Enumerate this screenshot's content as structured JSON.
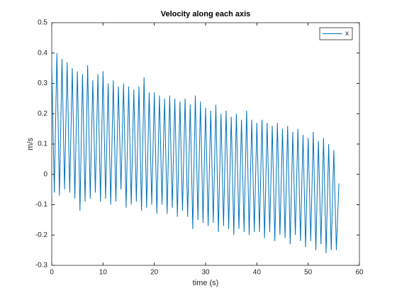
{
  "chart_data": {
    "type": "line",
    "title": "Velocity along each axis",
    "x_label": "time (s)",
    "y_label": "m/s",
    "legend": "northeast",
    "grid": false,
    "xlim": [
      0,
      60
    ],
    "xticks": [
      0,
      10,
      20,
      30,
      40,
      50,
      60
    ],
    "ylim": [
      -0.3,
      0.5
    ],
    "yticks": [
      -0.3,
      -0.2,
      -0.1,
      0,
      0.1,
      0.2,
      0.3,
      0.4,
      0.5
    ],
    "x": [
      0,
      0.5,
      1,
      1.5,
      2,
      2.5,
      3,
      3.5,
      4,
      4.5,
      5,
      5.5,
      6,
      6.5,
      7,
      7.5,
      8,
      8.5,
      9,
      9.5,
      10,
      10.5,
      11,
      11.5,
      12,
      12.5,
      13,
      13.5,
      14,
      14.5,
      15,
      15.5,
      16,
      16.5,
      17,
      17.5,
      18,
      18.5,
      19,
      19.5,
      20,
      20.5,
      21,
      21.5,
      22,
      22.5,
      23,
      23.5,
      24,
      24.5,
      25,
      25.5,
      26,
      26.5,
      27,
      27.5,
      28,
      28.5,
      29,
      29.5,
      30,
      30.5,
      31,
      31.5,
      32,
      32.5,
      33,
      33.5,
      34,
      34.5,
      35,
      35.5,
      36,
      36.5,
      37,
      37.5,
      38,
      38.5,
      39,
      39.5,
      40,
      40.5,
      41,
      41.5,
      42,
      42.5,
      43,
      43.5,
      44,
      44.5,
      45,
      45.5,
      46,
      46.5,
      47,
      47.5,
      48,
      48.5,
      49,
      49.5,
      50,
      50.5,
      51,
      51.5,
      52,
      52.5,
      53,
      53.5,
      54,
      54.5,
      55,
      55.5,
      56
    ],
    "series": [
      {
        "name": "x",
        "color": "#0072bd",
        "values": [
          0.36,
          -0.06,
          0.4,
          -0.07,
          0.38,
          -0.05,
          0.37,
          -0.06,
          0.35,
          -0.08,
          0.34,
          -0.12,
          0.33,
          -0.09,
          0.36,
          -0.08,
          0.31,
          -0.06,
          0.33,
          -0.09,
          0.34,
          -0.08,
          0.3,
          -0.1,
          0.31,
          -0.09,
          0.29,
          -0.05,
          0.3,
          -0.11,
          0.29,
          -0.1,
          0.28,
          -0.09,
          0.29,
          -0.12,
          0.32,
          -0.11,
          0.27,
          -0.1,
          0.27,
          -0.13,
          0.26,
          -0.1,
          0.25,
          -0.13,
          0.26,
          -0.11,
          0.25,
          -0.14,
          0.24,
          -0.12,
          0.25,
          -0.14,
          0.23,
          -0.18,
          0.26,
          -0.15,
          0.24,
          -0.16,
          0.22,
          -0.17,
          0.21,
          -0.16,
          0.23,
          -0.19,
          0.2,
          -0.17,
          0.21,
          -0.18,
          0.19,
          -0.2,
          0.2,
          -0.18,
          0.18,
          -0.19,
          0.21,
          -0.2,
          0.18,
          -0.19,
          0.17,
          -0.19,
          0.18,
          -0.21,
          0.17,
          -0.19,
          0.16,
          -0.22,
          0.17,
          -0.2,
          0.15,
          -0.21,
          0.16,
          -0.23,
          0.14,
          -0.2,
          0.15,
          -0.22,
          0.13,
          -0.24,
          0.12,
          -0.22,
          0.14,
          -0.25,
          0.11,
          -0.23,
          0.12,
          -0.26,
          0.1,
          -0.25,
          0.08,
          -0.25,
          -0.03
        ]
      }
    ]
  }
}
